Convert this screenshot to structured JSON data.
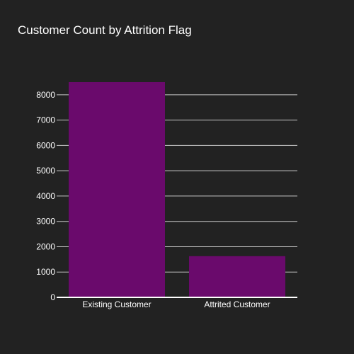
{
  "chart_data": {
    "type": "bar",
    "title": "Customer Count by Attrition Flag",
    "xlabel": "",
    "ylabel": "",
    "categories": [
      "Existing Customer",
      "Attrited Customer"
    ],
    "values": [
      8500,
      1627
    ],
    "ylim": [
      0,
      8947
    ],
    "yticks": [
      0,
      1000,
      2000,
      3000,
      4000,
      5000,
      6000,
      7000,
      8000
    ],
    "grid": true,
    "bar_color": "#6a0a6c",
    "background": "#222222",
    "grid_color": "#ffffff",
    "text_color": "#ffffff"
  }
}
